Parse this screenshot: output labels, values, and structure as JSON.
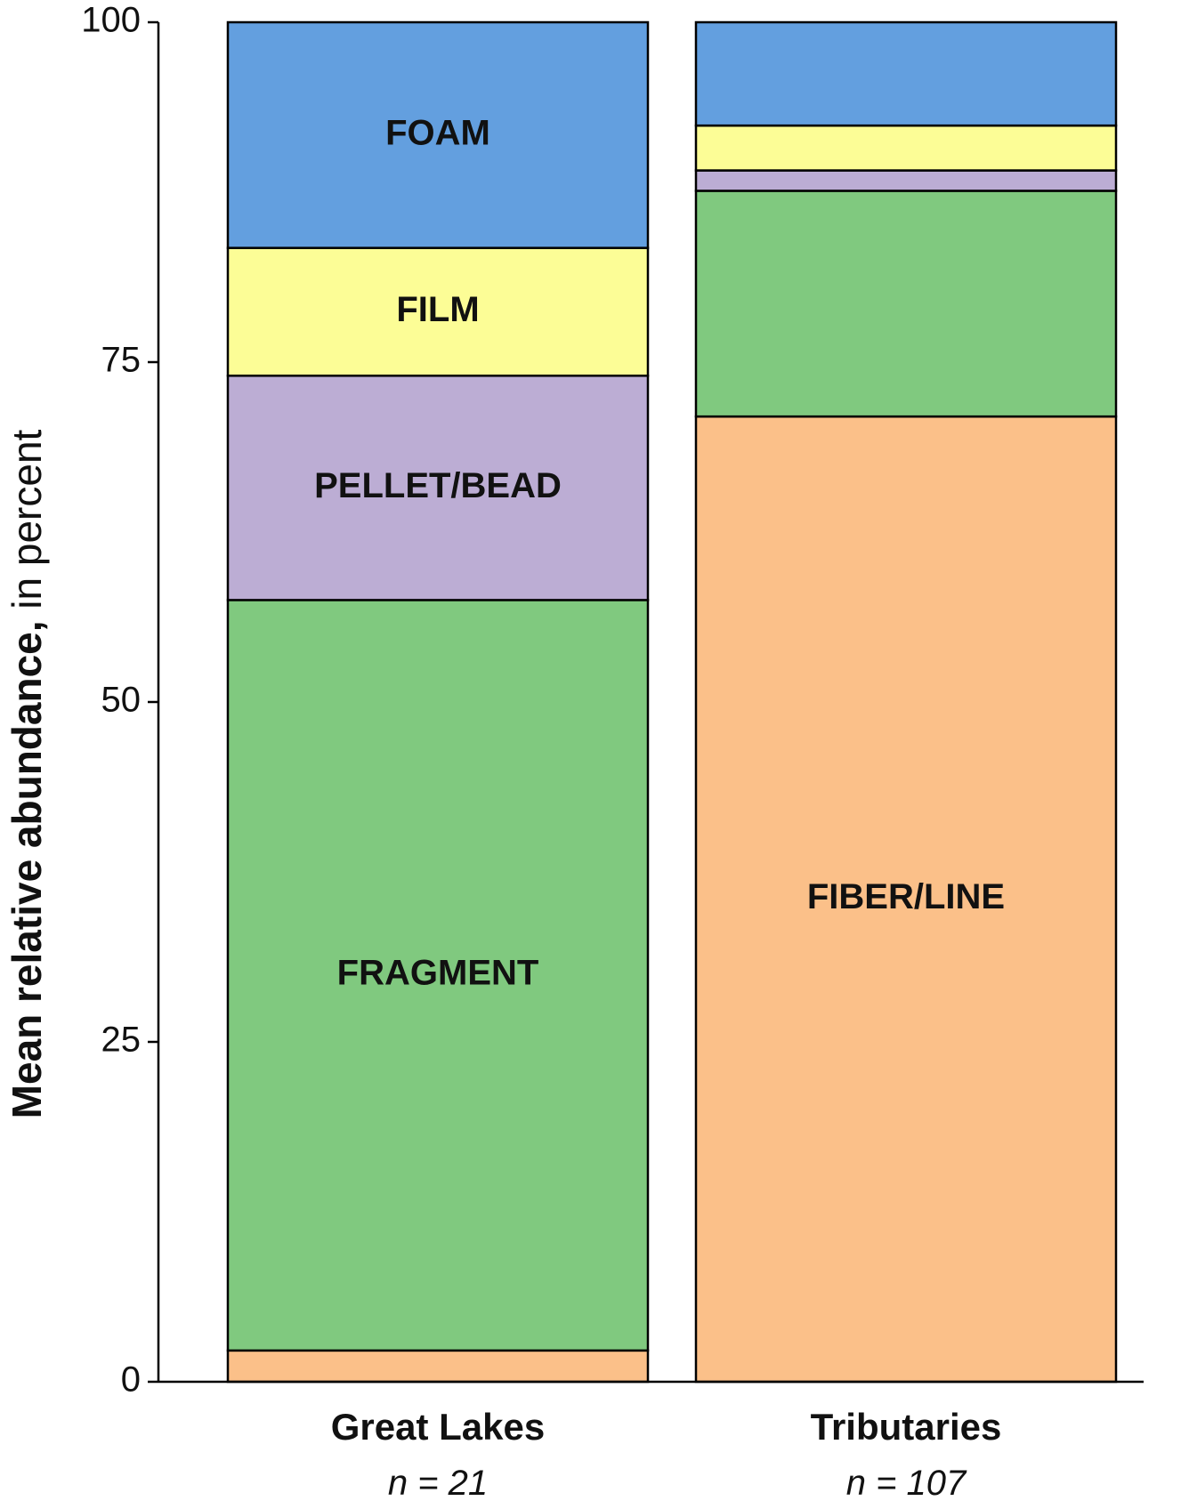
{
  "chart_data": {
    "type": "bar",
    "stacked": true,
    "ylabel_bold": "Mean relative abundance,",
    "ylabel_rest": " in percent",
    "ylim": [
      0,
      100
    ],
    "yticks": [
      0,
      25,
      50,
      75,
      100
    ],
    "grid": false,
    "categories": [
      {
        "name": "Great Lakes",
        "n_prefix": "n",
        "n_eq": " = ",
        "n_value": "21"
      },
      {
        "name": "Tributaries",
        "n_prefix": "n",
        "n_eq": " = ",
        "n_value": "107"
      }
    ],
    "series": [
      {
        "name": "FIBER/LINE",
        "color": "#fbc089",
        "values": [
          2.3,
          71.0
        ]
      },
      {
        "name": "FRAGMENT",
        "color": "#80c97f",
        "values": [
          55.2,
          16.6
        ]
      },
      {
        "name": "PELLET/BEAD",
        "color": "#bcadd4",
        "values": [
          16.5,
          1.5
        ]
      },
      {
        "name": "FILM",
        "color": "#fcfd96",
        "values": [
          9.4,
          3.3
        ]
      },
      {
        "name": "FOAM",
        "color": "#639fdf",
        "values": [
          16.6,
          7.6
        ]
      }
    ],
    "segment_labels": [
      {
        "series": "FOAM",
        "category": 0
      },
      {
        "series": "FILM",
        "category": 0
      },
      {
        "series": "PELLET/BEAD",
        "category": 0
      },
      {
        "series": "FRAGMENT",
        "category": 0
      },
      {
        "series": "FIBER/LINE",
        "category": 1
      }
    ]
  }
}
